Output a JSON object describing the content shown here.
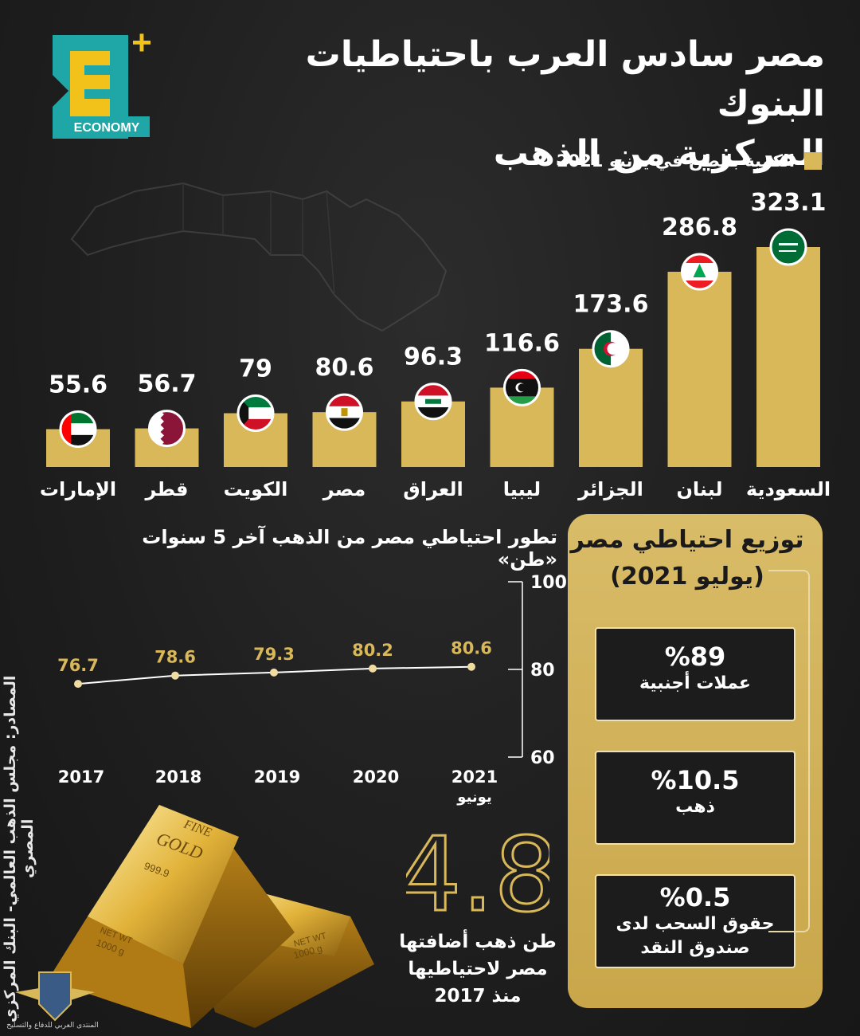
{
  "logo": {
    "text": "ECONOMY",
    "letter": "E",
    "plus": "+"
  },
  "title": {
    "line1": "مصر سادس العرب باحتياطيات البنوك",
    "line2": "المركزية من الذهب"
  },
  "legend": {
    "label": "الكمية بالطن في يونيو 2021",
    "color": "#d9b85a"
  },
  "chart_data": [
    {
      "type": "bar",
      "categories": [
        "الإمارات",
        "قطر",
        "الكويت",
        "مصر",
        "العراق",
        "ليبيا",
        "الجزائر",
        "لبنان",
        "السعودية"
      ],
      "values": [
        55.6,
        56.7,
        79,
        80.6,
        96.3,
        116.6,
        173.6,
        286.8,
        323.1
      ],
      "value_labels": [
        "55.6",
        "56.7",
        "79",
        "80.6",
        "96.3",
        "116.6",
        "173.6",
        "286.8",
        "323.1"
      ],
      "flags": [
        "uae-flag-icon",
        "qatar-flag-icon",
        "kuwait-flag-icon",
        "egypt-flag-icon",
        "iraq-flag-icon",
        "libya-flag-icon",
        "algeria-flag-icon",
        "lebanon-flag-icon",
        "saudi-flag-icon"
      ],
      "bar_color": "#d9b85a"
    },
    {
      "type": "line",
      "title": "تطور احتياطي مصر من الذهب آخر 5 سنوات «طن»",
      "x": [
        "2017",
        "2018",
        "2019",
        "2020",
        "2021"
      ],
      "x_sub": [
        "",
        "",
        "",
        "",
        "يونيو"
      ],
      "values": [
        76.7,
        78.6,
        79.3,
        80.2,
        80.6
      ],
      "value_labels": [
        "76.7",
        "78.6",
        "79.3",
        "80.2",
        "80.6"
      ],
      "ylim": [
        60,
        100
      ],
      "yticks": [
        "100",
        "80",
        "60"
      ],
      "line_color": "#ffffff",
      "label_color": "#d9b85a"
    }
  ],
  "distribution": {
    "title_line1": "توزيع احتياطي مصر",
    "title_line2": "(يوليو 2021)",
    "items": [
      {
        "pct": "%89",
        "label1": "عملات أجنبية",
        "label2": ""
      },
      {
        "pct": "%10.5",
        "label1": "ذهب",
        "label2": ""
      },
      {
        "pct": "%0.5",
        "label1": "حقوق السحب لدى",
        "label2": "صندوق النقد"
      }
    ]
  },
  "added": {
    "number": "4.8",
    "caption1": "طن ذهب أضافتها",
    "caption2": "مصر لاحتياطيها",
    "caption3": "منذ 2017"
  },
  "sources": "المصادر: مجلس الذهب العالمي- البنك المركزي المصري",
  "gold_bars": {
    "label1": "FINE",
    "label2": "GOLD",
    "purity": "999.9",
    "weight_label": "NET WT",
    "weight": "1000 g"
  },
  "watermark": {
    "text": "المنتدى العربي للدفاع والتسليح"
  }
}
